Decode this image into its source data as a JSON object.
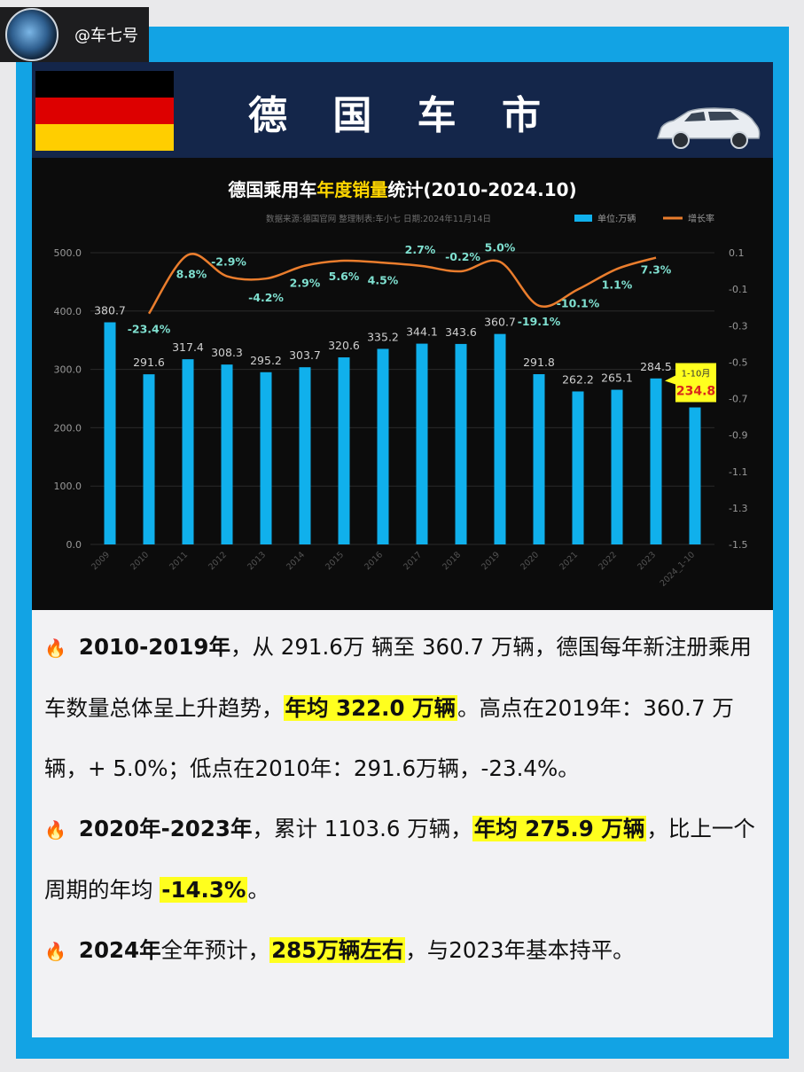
{
  "handle": {
    "text": "@车七号"
  },
  "header": {
    "title": "德 国 车 市",
    "flag_colors": [
      "#000000",
      "#dd0000",
      "#ffce00"
    ]
  },
  "chart_data": {
    "type": "bar",
    "title_parts": [
      "德国乘用车",
      "年度销量",
      "统计(2010-2024.10)"
    ],
    "source_note": "数据来源:德国官网  整理制表:车小七  日期:2024年11月14日",
    "legend": [
      "单位:万辆",
      "增长率"
    ],
    "categories": [
      "2009",
      "2010",
      "2011",
      "2012",
      "2013",
      "2014",
      "2015",
      "2016",
      "2017",
      "2018",
      "2019",
      "2020",
      "2021",
      "2022",
      "2023",
      "2024_1-10"
    ],
    "series": [
      {
        "name": "单位:万辆",
        "values": [
          380.7,
          291.6,
          317.4,
          308.3,
          295.2,
          303.7,
          320.6,
          335.2,
          344.1,
          343.6,
          360.7,
          291.8,
          262.2,
          265.1,
          284.5,
          234.8
        ],
        "labels": [
          "380.7",
          "291.6",
          "317.4",
          "308.3",
          "295.2",
          "303.7",
          "320.6",
          "335.2",
          "344.1",
          "343.6",
          "360.7",
          "291.8",
          "262.2",
          "265.1",
          "284.5",
          "234.8"
        ],
        "color": "#10b0ec"
      },
      {
        "name": "增长率",
        "values": [
          null,
          -0.234,
          0.088,
          -0.029,
          -0.042,
          0.029,
          0.056,
          0.045,
          0.027,
          -0.002,
          0.05,
          -0.191,
          -0.101,
          0.011,
          0.073,
          null
        ],
        "labels": [
          "",
          "-23.4%",
          "8.8%",
          "-2.9%",
          "-4.2%",
          "2.9%",
          "5.6%",
          "4.5%",
          "2.7%",
          "-0.2%",
          "5.0%",
          "-19.1%",
          "-10.1%",
          "1.1%",
          "7.3%",
          ""
        ],
        "color": "#ea7d2d"
      }
    ],
    "y_left": {
      "ticks": [
        "0.0",
        "100.0",
        "200.0",
        "300.0",
        "400.0",
        "500.0"
      ],
      "min": 0,
      "max": 500
    },
    "y_right": {
      "ticks": [
        "0.1",
        "-0.1",
        "-0.3",
        "-0.5",
        "-0.7",
        "-0.9",
        "-1.1",
        "-1.3",
        "-1.5"
      ],
      "min": -1.5,
      "max": 0.1
    },
    "callout": {
      "line1": "1-10月",
      "line2": "234.8"
    },
    "colors": {
      "rate_label": "#7fe0d0",
      "axis_text": "#9a9a9a",
      "title_highlight": "#ffd600",
      "callout_bg": "#ffff1e",
      "callout_value": "#d9261c"
    }
  },
  "notes": [
    {
      "seg1": "2010-2019年",
      "seg2": "，从 291.6万 辆至 360.7 万辆，德国每年新注册乘用车数量总体呈上升趋势，",
      "hl1": "年均 322.0 万辆",
      "seg3": "。高点在2019年：360.7 万辆，+ 5.0%；低点在2010年：291.6万辆，-23.4%。"
    },
    {
      "seg1": "2020年-2023年",
      "seg2": "，累计 1103.6 万辆，",
      "hl1": "年均 275.9 万辆",
      "seg3": "，比上一个周期的年均 ",
      "hl2": "-14.3%",
      "seg4": "。"
    },
    {
      "seg1": "2024年",
      "seg2": "全年预计，",
      "hl1": "285万辆左右",
      "seg3": "，与2023年基本持平。"
    }
  ]
}
